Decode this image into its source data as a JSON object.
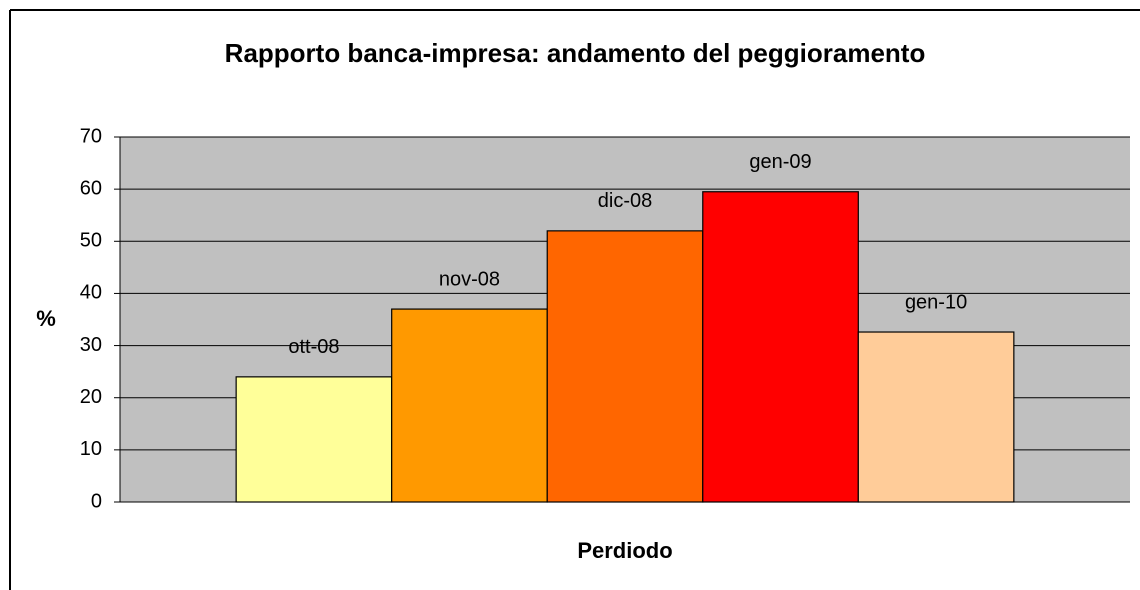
{
  "chart_data": {
    "type": "bar",
    "title": "Rapporto banca-impresa: andamento del peggioramento",
    "ylabel": "%",
    "xlabel": "Perdiodo",
    "categories": [
      null
    ],
    "series": [
      {
        "name": "ott-08",
        "color": "#ffff99",
        "values": [
          24
        ]
      },
      {
        "name": "nov-08",
        "color": "#ff9900",
        "values": [
          37
        ]
      },
      {
        "name": "dic-08",
        "color": "#ff6600",
        "values": [
          52
        ]
      },
      {
        "name": "gen-09",
        "color": "#ff0000",
        "values": [
          59.5
        ]
      },
      {
        "name": "gen-10",
        "color": "#ffcc99",
        "values": [
          32.6
        ]
      }
    ],
    "ylim": [
      0,
      70
    ],
    "yticks": [
      0,
      10,
      20,
      30,
      40,
      50,
      60,
      70
    ],
    "grid": true
  }
}
